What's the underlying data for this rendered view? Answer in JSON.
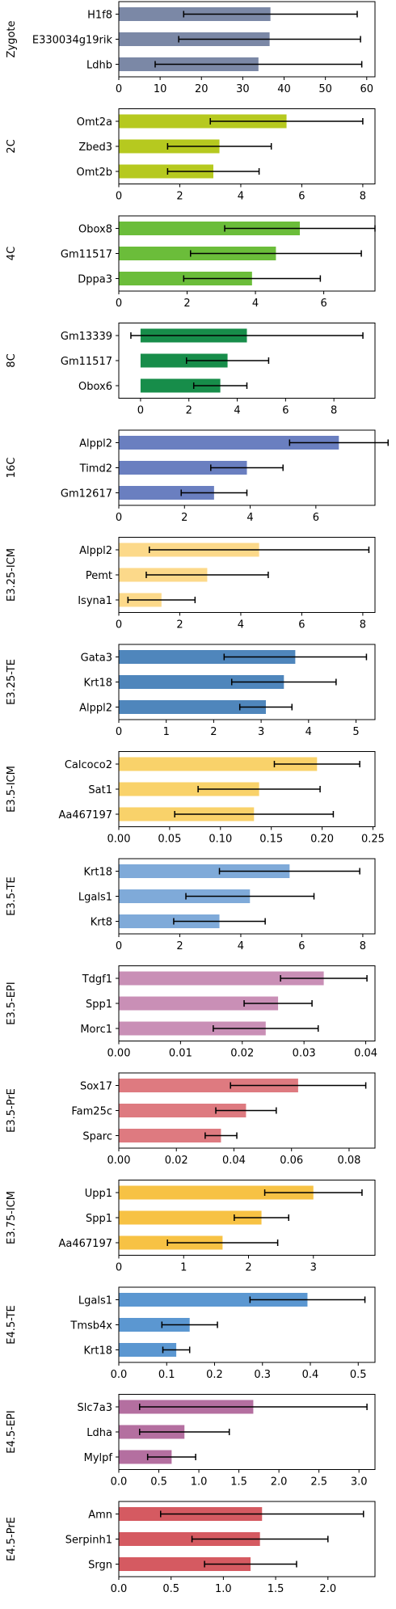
{
  "chart_data": [
    {
      "type": "bar",
      "ylabel": "Zygote",
      "color": "#7b88a6",
      "categories": [
        "H1f8",
        "E330034g19rik",
        "Ldhb"
      ],
      "values": [
        36.7,
        36.5,
        33.8
      ],
      "errors": [
        21.0,
        22.0,
        25.0
      ],
      "xlim": [
        0,
        62
      ],
      "ticks": [
        0,
        10,
        20,
        30,
        40,
        50,
        60
      ]
    },
    {
      "type": "bar",
      "ylabel": "2C",
      "color": "#b6c91f",
      "categories": [
        "Omt2a",
        "Zbed3",
        "Omt2b"
      ],
      "values": [
        5.5,
        3.3,
        3.1
      ],
      "errors": [
        2.5,
        1.7,
        1.5
      ],
      "xlim": [
        0,
        8.4
      ],
      "ticks": [
        0,
        2,
        4,
        6,
        8
      ]
    },
    {
      "type": "bar",
      "ylabel": "4C",
      "color": "#6bbd3a",
      "categories": [
        "Obox8",
        "Gm11517",
        "Dppa3"
      ],
      "values": [
        5.3,
        4.6,
        3.9
      ],
      "errors": [
        2.2,
        2.5,
        2.0
      ],
      "xlim": [
        0,
        7.5
      ],
      "ticks": [
        0,
        2,
        4,
        6
      ]
    },
    {
      "type": "bar",
      "ylabel": "8C",
      "color": "#178d4a",
      "categories": [
        "Gm13339",
        "Gm11517",
        "Obox6"
      ],
      "values": [
        4.4,
        3.6,
        3.3
      ],
      "errors": [
        4.8,
        1.7,
        1.1
      ],
      "xlim": [
        -0.9,
        9.7
      ],
      "ticks": [
        0,
        2,
        4,
        6,
        8
      ]
    },
    {
      "type": "bar",
      "ylabel": "16C",
      "color": "#6a7fc0",
      "categories": [
        "Alppl2",
        "Timd2",
        "Gm12617"
      ],
      "values": [
        6.7,
        3.9,
        2.9
      ],
      "errors": [
        1.5,
        1.1,
        1.0
      ],
      "xlim": [
        0,
        7.8
      ],
      "ticks": [
        0,
        2,
        4,
        6
      ]
    },
    {
      "type": "bar",
      "ylabel": "E3.25-ICM",
      "color": "#fcd98a",
      "categories": [
        "Alppl2",
        "Pemt",
        "Isyna1"
      ],
      "values": [
        4.6,
        2.9,
        1.4
      ],
      "errors": [
        3.6,
        2.0,
        1.1
      ],
      "xlim": [
        0,
        8.4
      ],
      "ticks": [
        0,
        2,
        4,
        6,
        8
      ]
    },
    {
      "type": "bar",
      "ylabel": "E3.25-TE",
      "color": "#4f86bc",
      "categories": [
        "Gata3",
        "Krt18",
        "Alppl2"
      ],
      "values": [
        3.72,
        3.48,
        3.1
      ],
      "errors": [
        1.5,
        1.1,
        0.55
      ],
      "xlim": [
        0,
        5.4
      ],
      "ticks": [
        0,
        1,
        2,
        3,
        4,
        5
      ]
    },
    {
      "type": "bar",
      "ylabel": "E3.5-ICM",
      "color": "#f9d26a",
      "categories": [
        "Calcoco2",
        "Sat1",
        "Aa467197"
      ],
      "values": [
        0.195,
        0.138,
        0.133
      ],
      "errors": [
        0.042,
        0.06,
        0.078
      ],
      "xlim": [
        0,
        0.252
      ],
      "ticks": [
        0.0,
        0.05,
        0.1,
        0.15,
        0.2,
        0.25
      ],
      "tickLabels": [
        "0.00",
        "0.05",
        "0.10",
        "0.15",
        "0.20",
        "0.25"
      ]
    },
    {
      "type": "bar",
      "ylabel": "E3.5-TE",
      "color": "#7faad9",
      "categories": [
        "Krt18",
        "Lgals1",
        "Krt8"
      ],
      "values": [
        5.6,
        4.3,
        3.3
      ],
      "errors": [
        2.3,
        2.1,
        1.5
      ],
      "xlim": [
        0,
        8.4
      ],
      "ticks": [
        0,
        2,
        4,
        6,
        8
      ]
    },
    {
      "type": "bar",
      "ylabel": "E3.5-EPI",
      "color": "#c98fb6",
      "categories": [
        "Tdgf1",
        "Spp1",
        "Morc1"
      ],
      "values": [
        0.0332,
        0.0258,
        0.0238
      ],
      "errors": [
        0.007,
        0.0055,
        0.0085
      ],
      "xlim": [
        0,
        0.0415
      ],
      "ticks": [
        0.0,
        0.01,
        0.02,
        0.03,
        0.04
      ],
      "tickLabels": [
        "0.00",
        "0.01",
        "0.02",
        "0.03",
        "0.04"
      ]
    },
    {
      "type": "bar",
      "ylabel": "E3.5-PrE",
      "color": "#de7a80",
      "categories": [
        "Sox17",
        "Fam25c",
        "Sparc"
      ],
      "values": [
        0.0623,
        0.0442,
        0.0355
      ],
      "errors": [
        0.0235,
        0.0105,
        0.0055
      ],
      "xlim": [
        0,
        0.089
      ],
      "ticks": [
        0.0,
        0.02,
        0.04,
        0.06,
        0.08
      ],
      "tickLabels": [
        "0.00",
        "0.02",
        "0.04",
        "0.06",
        "0.08"
      ]
    },
    {
      "type": "bar",
      "ylabel": "E3.75-ICM",
      "color": "#f7c244",
      "categories": [
        "Upp1",
        "Spp1",
        "Aa467197"
      ],
      "values": [
        3.0,
        2.2,
        1.6
      ],
      "errors": [
        0.75,
        0.42,
        0.85
      ],
      "xlim": [
        0,
        3.95
      ],
      "ticks": [
        0,
        1,
        2,
        3
      ]
    },
    {
      "type": "bar",
      "ylabel": "E4.5-TE",
      "color": "#5b97d1",
      "categories": [
        "Lgals1",
        "Tmsb4x",
        "Krt18"
      ],
      "values": [
        0.394,
        0.148,
        0.12
      ],
      "errors": [
        0.12,
        0.058,
        0.028
      ],
      "xlim": [
        0,
        0.535
      ],
      "ticks": [
        0.0,
        0.1,
        0.2,
        0.3,
        0.4,
        0.5
      ],
      "tickLabels": [
        "0.0",
        "0.1",
        "0.2",
        "0.3",
        "0.4",
        "0.5"
      ]
    },
    {
      "type": "bar",
      "ylabel": "E4.5-EPI",
      "color": "#b46fa0",
      "categories": [
        "Slc7a3",
        "Ldha",
        "Mylpf"
      ],
      "values": [
        1.68,
        0.82,
        0.66
      ],
      "errors": [
        1.42,
        0.56,
        0.3
      ],
      "xlim": [
        0,
        3.2
      ],
      "ticks": [
        0.0,
        0.5,
        1.0,
        1.5,
        2.0,
        2.5,
        3.0
      ],
      "tickLabels": [
        "0.0",
        "0.5",
        "1.0",
        "1.5",
        "2.0",
        "2.5",
        "3.0"
      ]
    },
    {
      "type": "bar",
      "ylabel": "E4.5-PrE",
      "color": "#d55a61",
      "categories": [
        "Amn",
        "Serpinh1",
        "Srgn"
      ],
      "values": [
        1.37,
        1.35,
        1.26
      ],
      "errors": [
        0.97,
        0.65,
        0.44
      ],
      "xlim": [
        0,
        2.45
      ],
      "ticks": [
        0.0,
        0.5,
        1.0,
        1.5,
        2.0
      ],
      "tickLabels": [
        "0.0",
        "0.5",
        "1.0",
        "1.5",
        "2.0"
      ]
    }
  ]
}
